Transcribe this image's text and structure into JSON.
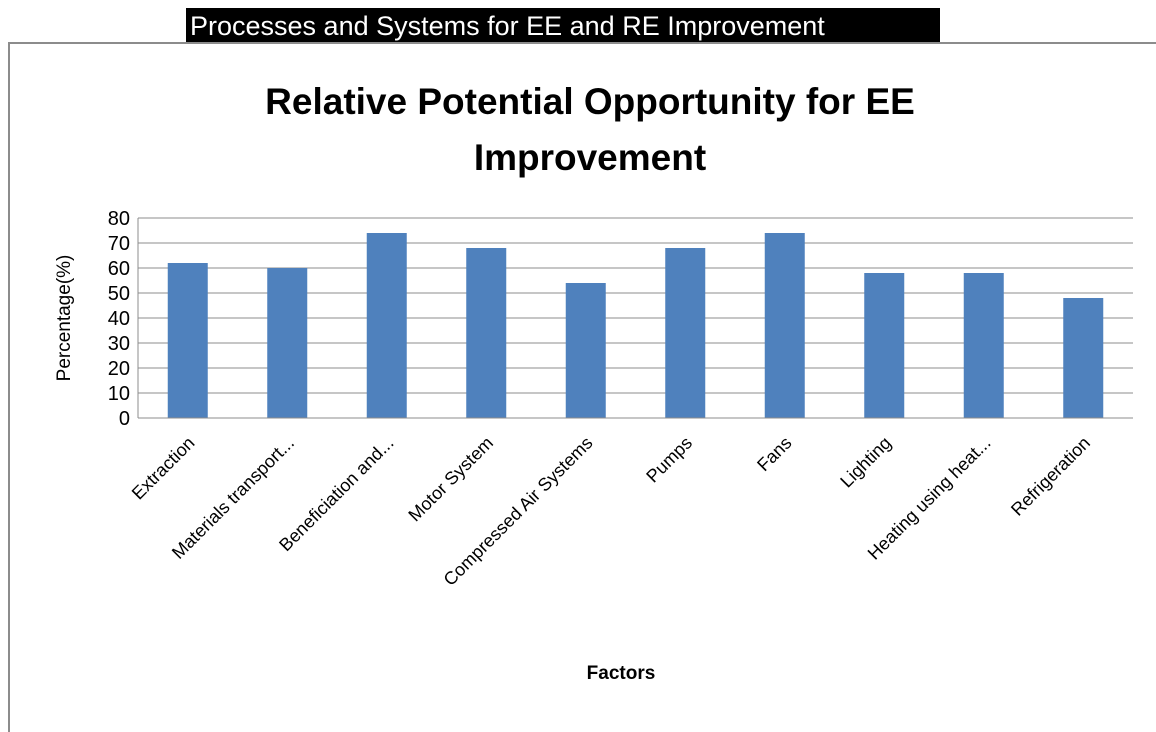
{
  "header": {
    "banner": "Processes and Systems for EE and RE Improvement"
  },
  "chart_data": {
    "type": "bar",
    "title_lines": [
      "Relative Potential Opportunity for EE",
      "Improvement"
    ],
    "xlabel": "Factors",
    "ylabel": "Percentage(%)",
    "ylim": [
      0,
      80
    ],
    "yticks": [
      0,
      10,
      20,
      30,
      40,
      50,
      60,
      70,
      80
    ],
    "grid": true,
    "legend": "none",
    "categories": [
      "Extraction",
      "Materials transport...",
      "Beneficiation and...",
      "Motor System",
      "Compressed Air Systems",
      "Pumps",
      "Fans",
      "Lighting",
      "Heating using heat...",
      "Refrigeration"
    ],
    "values": [
      62,
      60,
      74,
      68,
      54,
      68,
      74,
      58,
      58,
      48
    ],
    "bar_color": "#4f81bd"
  }
}
